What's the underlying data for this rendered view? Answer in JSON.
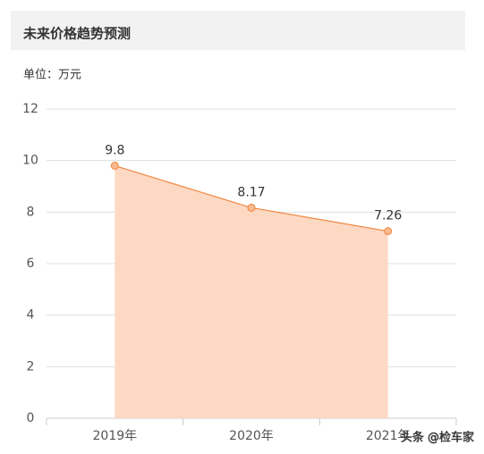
{
  "header": {
    "title": "未来价格趋势预测"
  },
  "unit": "单位：万元",
  "chart_data": {
    "type": "area",
    "categories": [
      "2019年",
      "2020年",
      "2021年"
    ],
    "values": [
      9.8,
      8.17,
      7.26
    ],
    "color": "#f0863f",
    "fill_color": "#fdd9c3",
    "ylim": [
      0,
      12
    ],
    "yticks": [
      0,
      2,
      4,
      6,
      8,
      10,
      12
    ],
    "grid": true
  },
  "watermark": "头条 @检车家"
}
